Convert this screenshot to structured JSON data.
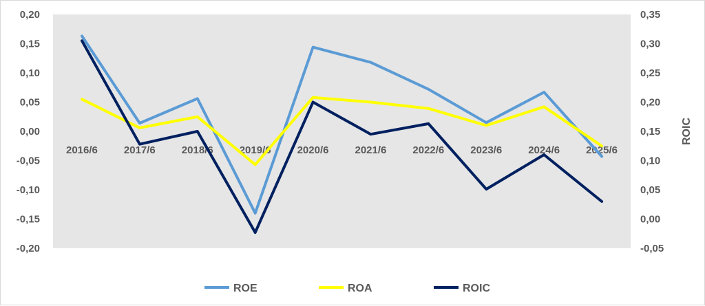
{
  "chart_data": {
    "type": "line",
    "categories": [
      "2016/6",
      "2017/6",
      "2018/6",
      "2019/6",
      "2020/6",
      "2021/6",
      "2022/6",
      "2023/6",
      "2024/6",
      "2025/6"
    ],
    "y_left": {
      "ylim": [
        -0.2,
        0.2
      ],
      "ticks": [
        "0,20",
        "0,15",
        "0,10",
        "0,05",
        "0,00",
        "-0,05",
        "-0,10",
        "-0,15",
        "-0,20"
      ],
      "tick_values": [
        0.2,
        0.15,
        0.1,
        0.05,
        0.0,
        -0.05,
        -0.1,
        -0.15,
        -0.2
      ]
    },
    "y_right": {
      "label": "ROIC",
      "ylim": [
        -0.05,
        0.35
      ],
      "ticks": [
        "0,35",
        "0,30",
        "0,25",
        "0,20",
        "0,15",
        "0,10",
        "0,05",
        "0,00",
        "-0,05"
      ],
      "tick_values": [
        0.35,
        0.3,
        0.25,
        0.2,
        0.15,
        0.1,
        0.05,
        0.0,
        -0.05
      ]
    },
    "series": [
      {
        "name": "ROE",
        "axis": "left",
        "color": "#5b9bd5",
        "values": [
          0.163,
          0.014,
          0.056,
          -0.14,
          0.144,
          0.118,
          0.072,
          0.015,
          0.067,
          -0.043
        ]
      },
      {
        "name": "ROA",
        "axis": "left",
        "color": "#ffff00",
        "values": [
          0.055,
          0.006,
          0.025,
          -0.057,
          0.058,
          0.05,
          0.039,
          0.01,
          0.042,
          -0.025
        ]
      },
      {
        "name": "ROIC",
        "axis": "right",
        "color": "#002060",
        "values": [
          0.305,
          0.128,
          0.15,
          -0.023,
          0.2,
          0.145,
          0.163,
          0.051,
          0.11,
          0.03
        ]
      }
    ],
    "grid": false,
    "legend": "bottom",
    "plot_background": "#e6e6e6"
  }
}
